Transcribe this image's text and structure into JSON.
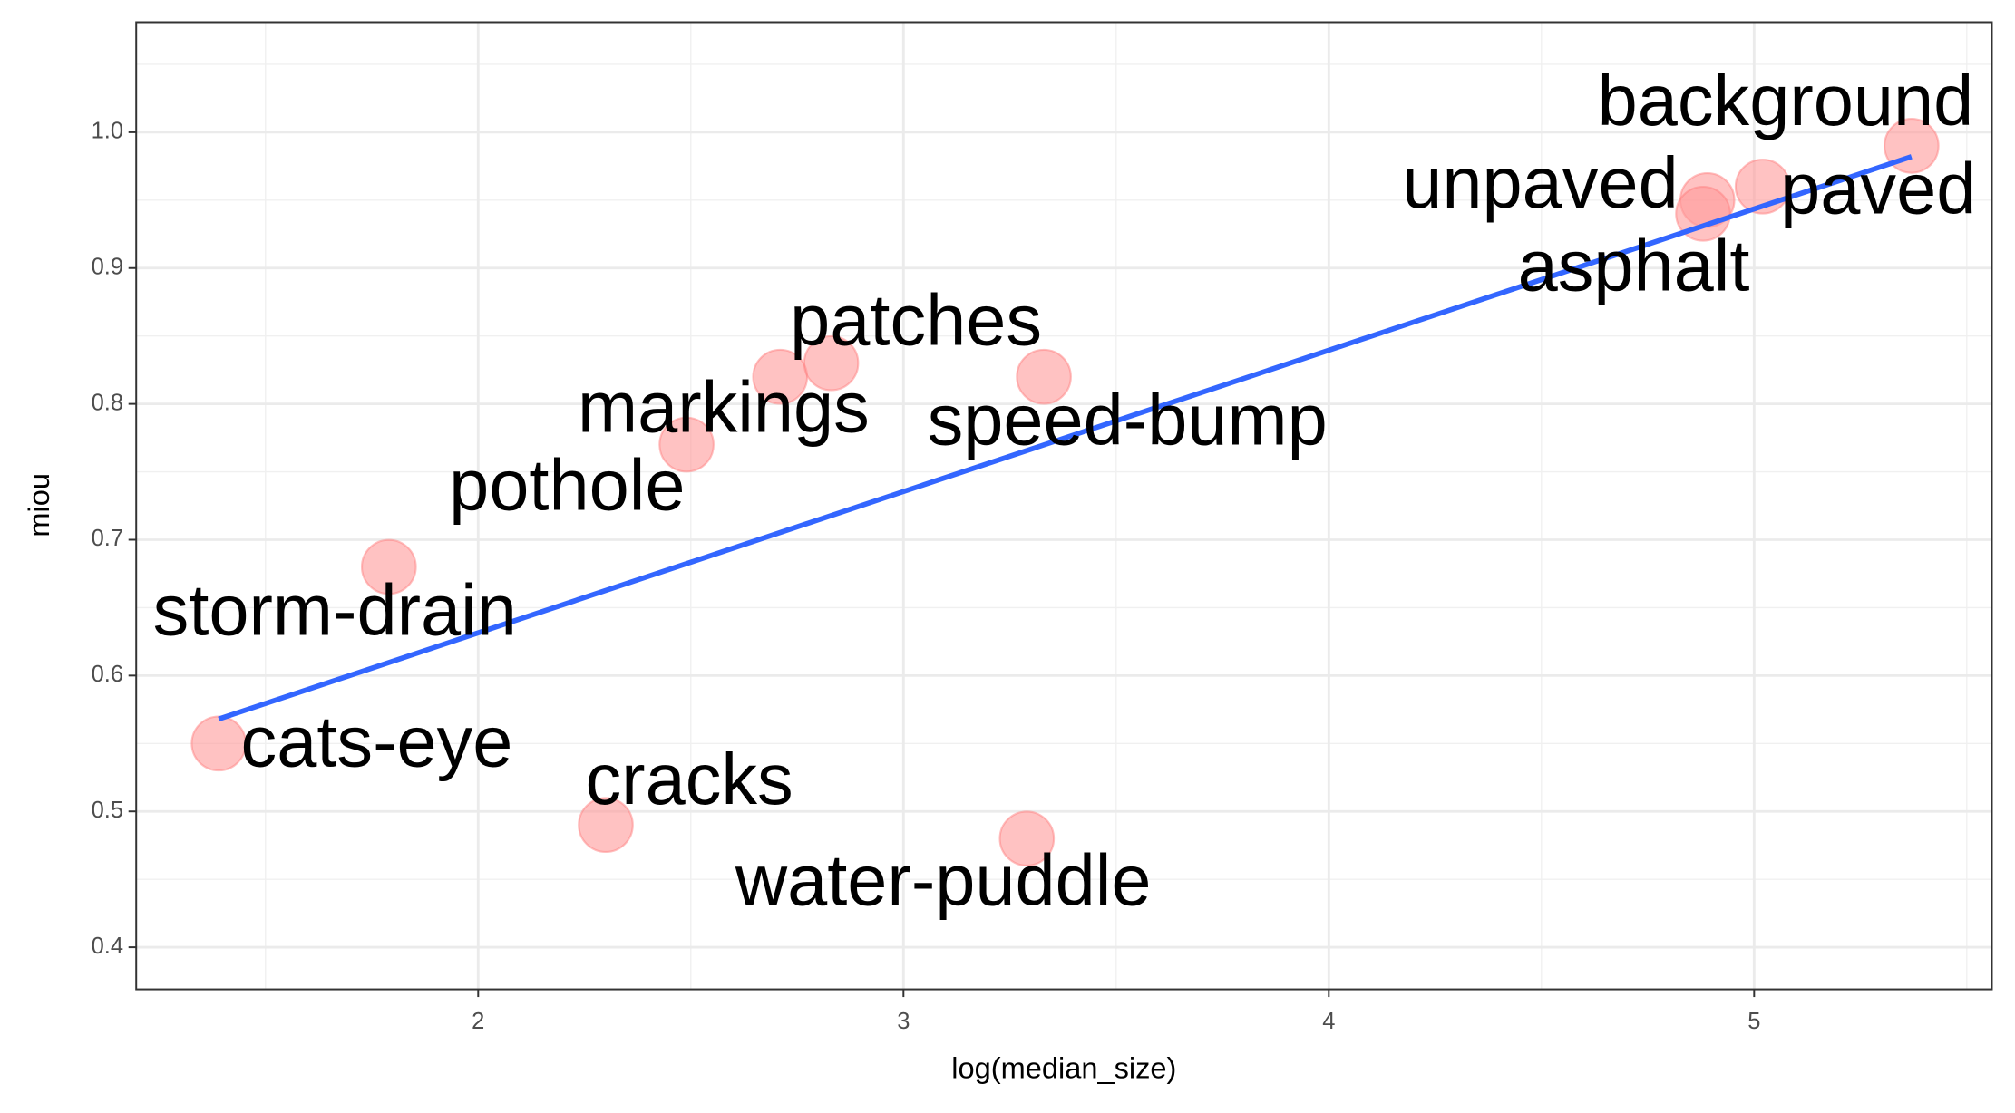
{
  "chart_data": {
    "type": "scatter",
    "xlabel": "log(median_size)",
    "ylabel": "miou",
    "labels": [
      "cats-eye",
      "storm-drain",
      "pothole",
      "markings",
      "patches",
      "speed-bump",
      "cracks",
      "water-puddle",
      "unpaved",
      "asphalt",
      "paved",
      "background"
    ],
    "x": [
      1.39,
      1.79,
      2.49,
      2.71,
      2.83,
      3.33,
      2.3,
      3.29,
      4.89,
      4.88,
      5.02,
      5.37
    ],
    "values": [
      0.55,
      0.68,
      0.77,
      0.82,
      0.83,
      0.82,
      0.49,
      0.48,
      0.95,
      0.94,
      0.96,
      0.99
    ],
    "color": "#ff9999",
    "fit": {
      "x": [
        1.39,
        5.37
      ],
      "values": [
        0.568,
        0.982
      ],
      "color": "#3366ff"
    },
    "xlim": [
      1.196,
      5.559
    ],
    "ylim": [
      0.369,
      1.081
    ],
    "xticks": [
      2,
      3,
      4,
      5
    ],
    "yticks": [
      0.4,
      0.5,
      0.6,
      0.7,
      0.8,
      0.9,
      {
        "value": 1,
        "label": "1.0"
      }
    ],
    "grid": true,
    "minor_grid": true
  }
}
